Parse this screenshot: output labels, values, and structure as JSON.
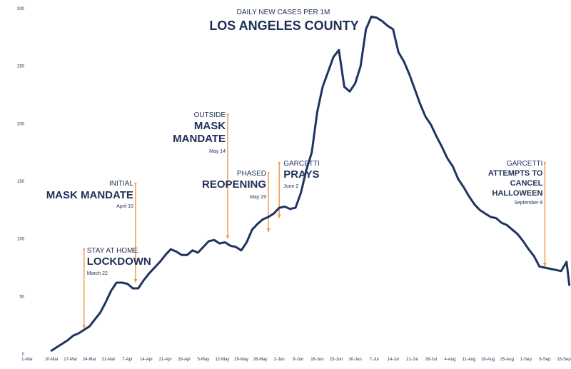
{
  "chart_data": {
    "type": "line",
    "subtitle": "DAILY NEW CASES PER 1M",
    "title": "LOS ANGELES COUNTY",
    "ylim": [
      0,
      300
    ],
    "y_ticks": [
      0,
      50,
      100,
      150,
      200,
      250,
      300
    ],
    "x_ticks": [
      "1-Mar",
      "10-Mar",
      "17-Mar",
      "24-Mar",
      "31-Mar",
      "7-Apr",
      "14-Apr",
      "21-Apr",
      "28-Apr",
      "5-May",
      "12-May",
      "19-May",
      "26-May",
      "2-Jun",
      "9-Jun",
      "16-Jun",
      "23-Jun",
      "30-Jun",
      "7-Jul",
      "14-Jul",
      "21-Jul",
      "28-Jul",
      "4-Aug",
      "11-Aug",
      "18-Aug",
      "25-Aug",
      "1-Sep",
      "8-Sep",
      "15-Sep"
    ],
    "grid": false,
    "legend": "none",
    "colors": {
      "line": "#1f3460",
      "annotation": "#f39a4c",
      "text": "#1f2f57"
    },
    "series": [
      {
        "x": [
          "10-Mar",
          "12-Mar",
          "14-Mar",
          "16-Mar",
          "18-Mar",
          "20-Mar",
          "22-Mar",
          "24-Mar",
          "26-Mar",
          "28-Mar",
          "30-Mar",
          "1-Apr",
          "3-Apr",
          "5-Apr",
          "7-Apr",
          "9-Apr",
          "11-Apr",
          "13-Apr",
          "15-Apr",
          "17-Apr",
          "19-Apr",
          "21-Apr",
          "23-Apr",
          "25-Apr",
          "27-Apr",
          "29-Apr",
          "1-May",
          "3-May",
          "5-May",
          "7-May",
          "9-May",
          "11-May",
          "13-May",
          "15-May",
          "17-May",
          "19-May",
          "21-May",
          "23-May",
          "25-May",
          "27-May",
          "29-May",
          "31-May",
          "2-Jun",
          "4-Jun",
          "6-Jun",
          "8-Jun",
          "10-Jun",
          "12-Jun",
          "14-Jun",
          "16-Jun",
          "18-Jun",
          "20-Jun",
          "22-Jun",
          "24-Jun",
          "26-Jun",
          "28-Jun",
          "30-Jun",
          "2-Jul",
          "4-Jul",
          "6-Jul",
          "8-Jul",
          "10-Jul",
          "12-Jul",
          "14-Jul",
          "16-Jul",
          "18-Jul",
          "20-Jul",
          "22-Jul",
          "24-Jul",
          "26-Jul",
          "28-Jul",
          "30-Jul",
          "1-Aug",
          "3-Aug",
          "5-Aug",
          "7-Aug",
          "9-Aug",
          "11-Aug",
          "13-Aug",
          "15-Aug",
          "17-Aug",
          "19-Aug",
          "21-Aug",
          "23-Aug",
          "25-Aug",
          "27-Aug",
          "29-Aug",
          "31-Aug",
          "2-Sep",
          "4-Sep",
          "6-Sep",
          "8-Sep",
          "10-Sep",
          "12-Sep",
          "14-Sep",
          "16-Sep",
          "17-Sep"
        ],
        "values": [
          3,
          6,
          9,
          12,
          16,
          18,
          21,
          24,
          30,
          36,
          45,
          55,
          62,
          62,
          61,
          57,
          57,
          64,
          70,
          75,
          80,
          86,
          91,
          89,
          86,
          86,
          90,
          88,
          93,
          98,
          99,
          96,
          97,
          94,
          93,
          90,
          97,
          108,
          113,
          117,
          119,
          122,
          127,
          128,
          126,
          127,
          140,
          160,
          175,
          210,
          232,
          245,
          258,
          264,
          232,
          228,
          235,
          250,
          282,
          293,
          292,
          289,
          285,
          282,
          262,
          254,
          243,
          230,
          217,
          206,
          199,
          189,
          180,
          170,
          163,
          152,
          145,
          137,
          130,
          125,
          122,
          119,
          118,
          114,
          112,
          108,
          104,
          98,
          91,
          85,
          76,
          75,
          74,
          73,
          72,
          80,
          60
        ]
      }
    ],
    "annotations": [
      {
        "date": "22-Mar",
        "from": 22,
        "to": 91,
        "lines": [
          "STAY AT HOME"
        ],
        "headline": [
          "LOCKDOWN"
        ],
        "note": "March 22"
      },
      {
        "date": "10-Apr",
        "from": 62,
        "to": 148,
        "lines": [
          "INITIAL"
        ],
        "headline": [
          "MASK MANDATE"
        ],
        "note": "April 10"
      },
      {
        "date": "14-May",
        "from": 100,
        "to": 208,
        "lines": [
          "OUTSIDE"
        ],
        "headline": [
          "MASK",
          "MANDATE"
        ],
        "note": "May 14"
      },
      {
        "date": "29-May",
        "from": 106,
        "to": 157,
        "lines": [
          "PHASED"
        ],
        "headline": [
          "REOPENING"
        ],
        "note": "May 29"
      },
      {
        "date": "2-Jun",
        "from": 118,
        "to": 166,
        "lines": [
          "GARCETTI"
        ],
        "headline": [
          "PRAYS"
        ],
        "note": "June 2"
      },
      {
        "date": "8-Sep",
        "from": 76,
        "to": 166,
        "lines": [
          "GARCETTI"
        ],
        "headline": [
          "ATTEMPTS TO",
          "CANCEL",
          "HALLOWEEN"
        ],
        "note": "September 8"
      }
    ]
  }
}
